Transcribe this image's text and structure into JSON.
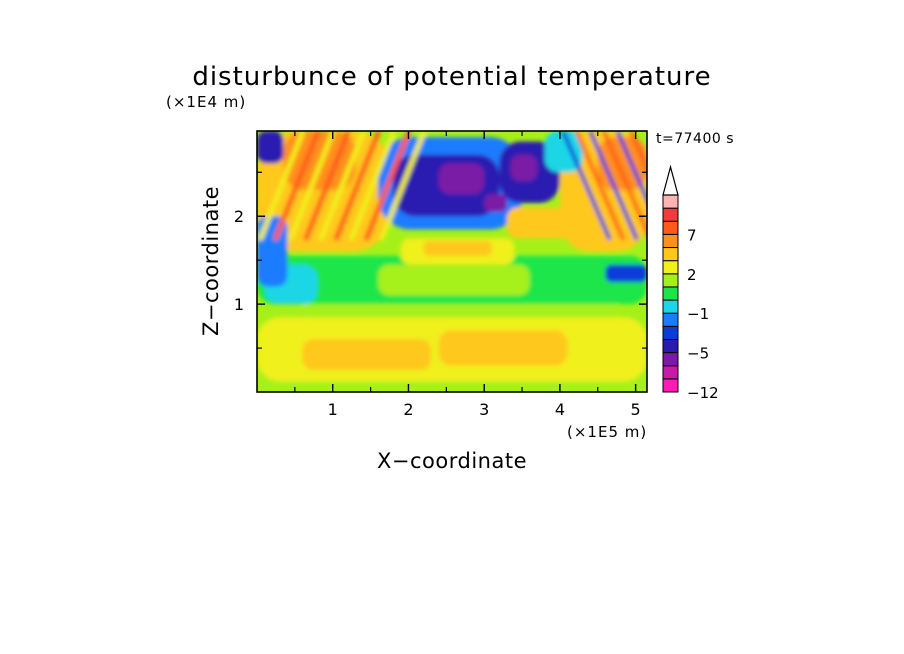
{
  "chart_data": {
    "type": "heatmap",
    "title": "disturbunce of potential temperature",
    "xlabel": "X−coordinate",
    "ylabel": "Z−coordinate",
    "x_unit": "(×1E5 m)",
    "y_unit": "(×1E4 m)",
    "time_label": "t=77400 s",
    "xlim": [
      0,
      5.15
    ],
    "ylim": [
      0,
      2.97
    ],
    "x_ticks": [
      {
        "value": 1,
        "label": "1"
      },
      {
        "value": 2,
        "label": "2"
      },
      {
        "value": 3,
        "label": "3"
      },
      {
        "value": 4,
        "label": "4"
      },
      {
        "value": 5,
        "label": "5"
      }
    ],
    "y_ticks": [
      {
        "value": 1,
        "label": "1"
      },
      {
        "value": 2,
        "label": "2"
      }
    ],
    "colorbar": {
      "levels": [
        -12,
        -9,
        -7,
        -5,
        -3,
        -2,
        -1,
        0,
        1,
        2,
        3,
        5,
        7,
        9,
        12
      ],
      "colors": [
        "#ff1ab4",
        "#c81aa8",
        "#7a1aa6",
        "#2a1ab0",
        "#0a3cd8",
        "#1a7cff",
        "#1ad6e6",
        "#1ae64a",
        "#a6f01a",
        "#f0f01a",
        "#ffc81a",
        "#ff901a",
        "#ff5a1a",
        "#f03c3c",
        "#ffb4b4"
      ],
      "extend": "max",
      "labels": [
        {
          "value": 7,
          "label": "7"
        },
        {
          "value": 2,
          "label": "2"
        },
        {
          "value": -1,
          "label": "−1"
        },
        {
          "value": -5,
          "label": "−5"
        },
        {
          "value": -12,
          "label": "−12"
        }
      ]
    },
    "field_features": [
      {
        "name": "lower warm layer",
        "x": [
          0,
          5.15
        ],
        "z": [
          0.05,
          0.9
        ],
        "value": 2.5
      },
      {
        "name": "mid neutral layer",
        "x": [
          0,
          5.15
        ],
        "z": [
          0.9,
          1.6
        ],
        "value": 0.5
      },
      {
        "name": "upper-left warm streaks",
        "x": [
          0,
          1.8
        ],
        "z": [
          1.7,
          2.97
        ],
        "value": 5
      },
      {
        "name": "upper-middle cold cell",
        "x": [
          2.0,
          3.2
        ],
        "z": [
          1.9,
          2.9
        ],
        "value": -6
      },
      {
        "name": "upper-right cold cell",
        "x": [
          3.2,
          4.0
        ],
        "z": [
          2.2,
          2.9
        ],
        "value": -5
      },
      {
        "name": "upper-right warm streaks",
        "x": [
          4.0,
          5.15
        ],
        "z": [
          1.6,
          2.97
        ],
        "value": 5
      }
    ]
  }
}
